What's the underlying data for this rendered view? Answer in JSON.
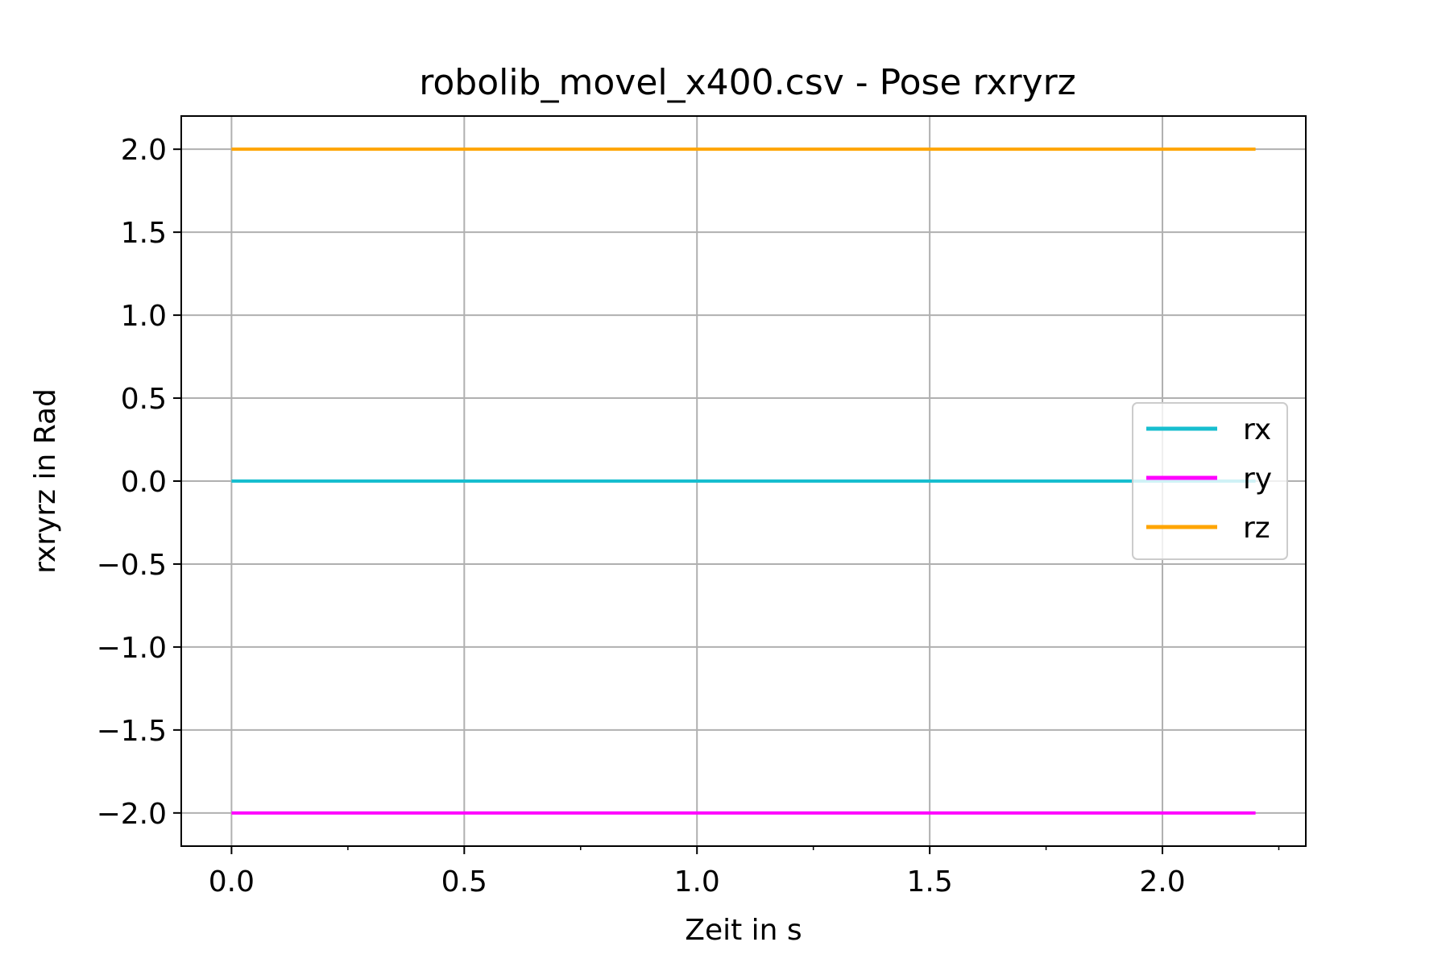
{
  "chart_data": {
    "type": "line",
    "title": "robolib_movel_x400.csv - Pose rxryrz",
    "xlabel": "Zeit in s",
    "ylabel": "rxryrz in Rad",
    "xlim": [
      -0.108,
      2.308
    ],
    "ylim": [
      -2.2,
      2.2
    ],
    "xticks": [
      0.0,
      0.5,
      1.0,
      1.5,
      2.0
    ],
    "xtick_labels": [
      "0.0",
      "0.5",
      "1.0",
      "1.5",
      "2.0"
    ],
    "yticks": [
      2.0,
      1.5,
      1.0,
      0.5,
      0.0,
      -0.5,
      -1.0,
      -1.5,
      -2.0
    ],
    "ytick_labels": [
      "2.0",
      "1.5",
      "1.0",
      "0.5",
      "0.0",
      "−0.5",
      "−1.0",
      "−1.5",
      "−2.0"
    ],
    "grid": true,
    "legend_position": "center-right",
    "series": [
      {
        "name": "rx",
        "color": "#17becf",
        "x": [
          0.0,
          2.2
        ],
        "y": [
          0.0,
          0.0
        ]
      },
      {
        "name": "ry",
        "color": "#ff00ff",
        "x": [
          0.0,
          2.2
        ],
        "y": [
          -2.0,
          -2.0
        ]
      },
      {
        "name": "rz",
        "color": "#ffa500",
        "x": [
          0.0,
          2.2
        ],
        "y": [
          2.0,
          2.0
        ]
      }
    ]
  }
}
